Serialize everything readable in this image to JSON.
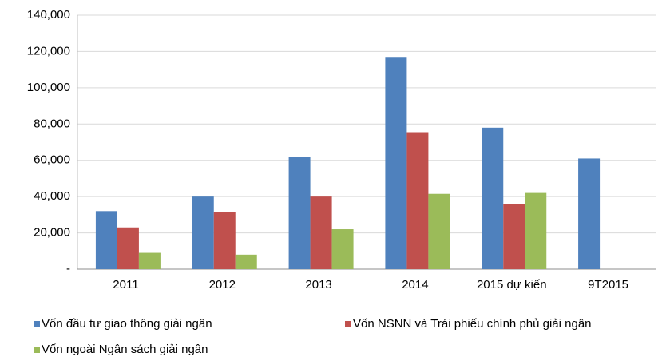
{
  "chart_data": {
    "type": "bar",
    "categories": [
      "2011",
      "2012",
      "2013",
      "2014",
      "2015 dự kiến",
      "9T2015"
    ],
    "series": [
      {
        "name": "Vốn đầu tư giao thông giải ngân",
        "color": "#4f81bd",
        "values": [
          32000,
          40000,
          62000,
          117000,
          78000,
          61000
        ]
      },
      {
        "name": "Vốn NSNN và Trái phiếu chính phủ giải ngân",
        "color": "#c0504d",
        "values": [
          23000,
          31500,
          40000,
          75500,
          36000,
          null
        ]
      },
      {
        "name": "Vốn ngoài Ngân sách giải ngân",
        "color": "#9bbb59",
        "values": [
          9000,
          8000,
          22000,
          41500,
          42000,
          null
        ]
      }
    ],
    "ylim": [
      0,
      140000
    ],
    "yticks": [
      {
        "value": 0,
        "label": "-"
      },
      {
        "value": 20000,
        "label": "20,000"
      },
      {
        "value": 40000,
        "label": "40,000"
      },
      {
        "value": 60000,
        "label": "60,000"
      },
      {
        "value": 80000,
        "label": "80,000"
      },
      {
        "value": 100000,
        "label": "100,000"
      },
      {
        "value": 120000,
        "label": "120,000"
      },
      {
        "value": 140000,
        "label": "140,000"
      }
    ],
    "grid": true
  }
}
